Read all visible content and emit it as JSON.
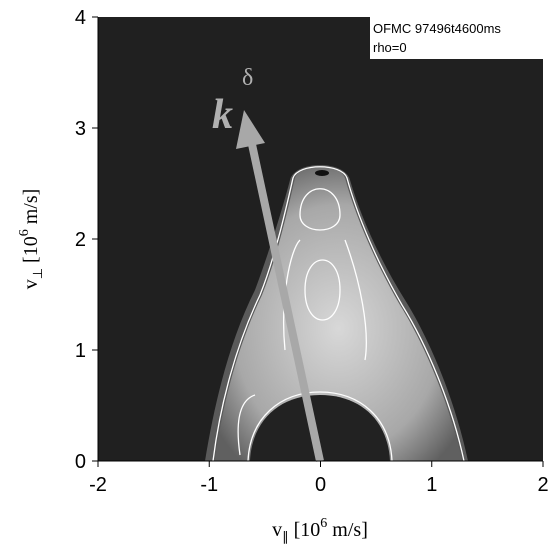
{
  "chart_data": {
    "type": "heatmap",
    "xlabel": [
      "v",
      "∥",
      " [10",
      "6",
      " m/s]"
    ],
    "ylabel": [
      "v",
      "⊥",
      " [10",
      "6",
      " m/s]"
    ],
    "annotation": [
      "OFMC 97496t4600ms",
      "rho=0"
    ],
    "arrow_label": [
      "k",
      "δ"
    ],
    "xlim": [
      -2,
      2
    ],
    "xticks": [
      -2,
      -1,
      0,
      1,
      2
    ],
    "ylim": [
      0,
      4
    ],
    "yticks": [
      0,
      1,
      2,
      3,
      4
    ]
  }
}
